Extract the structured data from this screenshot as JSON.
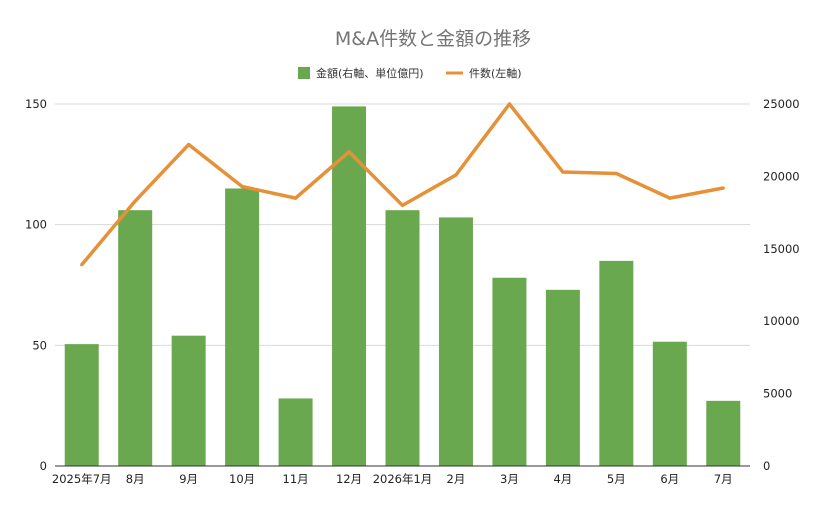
{
  "chart_data": {
    "type": "bar+line",
    "title": "M&A件数と金額の推移",
    "categories": [
      "2025年7月",
      "8月",
      "9月",
      "10月",
      "11月",
      "12月",
      "2026年1月",
      "2月",
      "3月",
      "4月",
      "5月",
      "6月",
      "7月"
    ],
    "series": [
      {
        "name": "金額(右軸、単位億円)",
        "type": "bar",
        "axis": "left",
        "color": "#6aa84f",
        "values": [
          50.5,
          106,
          54,
          115,
          28,
          149,
          106,
          103,
          78,
          73,
          85,
          51.5,
          27
        ]
      },
      {
        "name": "件数(左軸)",
        "type": "line",
        "axis": "right",
        "color": "#e69138",
        "values": [
          13900,
          18300,
          22200,
          19300,
          18500,
          21700,
          18000,
          20100,
          25000,
          20300,
          20200,
          18500,
          19200
        ]
      }
    ],
    "left_axis": {
      "min": 0,
      "max": 150,
      "ticks": [
        0,
        50,
        100,
        150
      ]
    },
    "right_axis": {
      "min": 0,
      "max": 25000,
      "ticks": [
        0,
        5000,
        10000,
        15000,
        20000,
        25000
      ]
    },
    "grid": true,
    "legend_position": "top-center"
  }
}
